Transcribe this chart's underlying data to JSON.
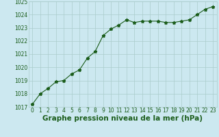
{
  "x": [
    0,
    1,
    2,
    3,
    4,
    5,
    6,
    7,
    8,
    9,
    10,
    11,
    12,
    13,
    14,
    15,
    16,
    17,
    18,
    19,
    20,
    21,
    22,
    23
  ],
  "y": [
    1017.2,
    1018.0,
    1018.4,
    1018.9,
    1019.0,
    1019.5,
    1019.8,
    1020.7,
    1021.2,
    1022.4,
    1022.9,
    1023.2,
    1023.6,
    1023.4,
    1023.5,
    1023.5,
    1023.5,
    1023.4,
    1023.4,
    1023.5,
    1023.6,
    1024.0,
    1024.4,
    1024.6
  ],
  "ylim": [
    1017,
    1025
  ],
  "xlim": [
    -0.5,
    23.5
  ],
  "yticks": [
    1017,
    1018,
    1019,
    1020,
    1021,
    1022,
    1023,
    1024,
    1025
  ],
  "xticks": [
    0,
    1,
    2,
    3,
    4,
    5,
    6,
    7,
    8,
    9,
    10,
    11,
    12,
    13,
    14,
    15,
    16,
    17,
    18,
    19,
    20,
    21,
    22,
    23
  ],
  "line_color": "#1a5c1a",
  "marker": "*",
  "marker_size": 3.5,
  "bg_color": "#cce8f0",
  "grid_color": "#aacccc",
  "title": "Graphe pression niveau de la mer (hPa)",
  "title_color": "#1a5c1a",
  "title_fontsize": 7.5,
  "tick_color": "#1a5c1a",
  "tick_fontsize": 5.5,
  "line_width": 0.8
}
